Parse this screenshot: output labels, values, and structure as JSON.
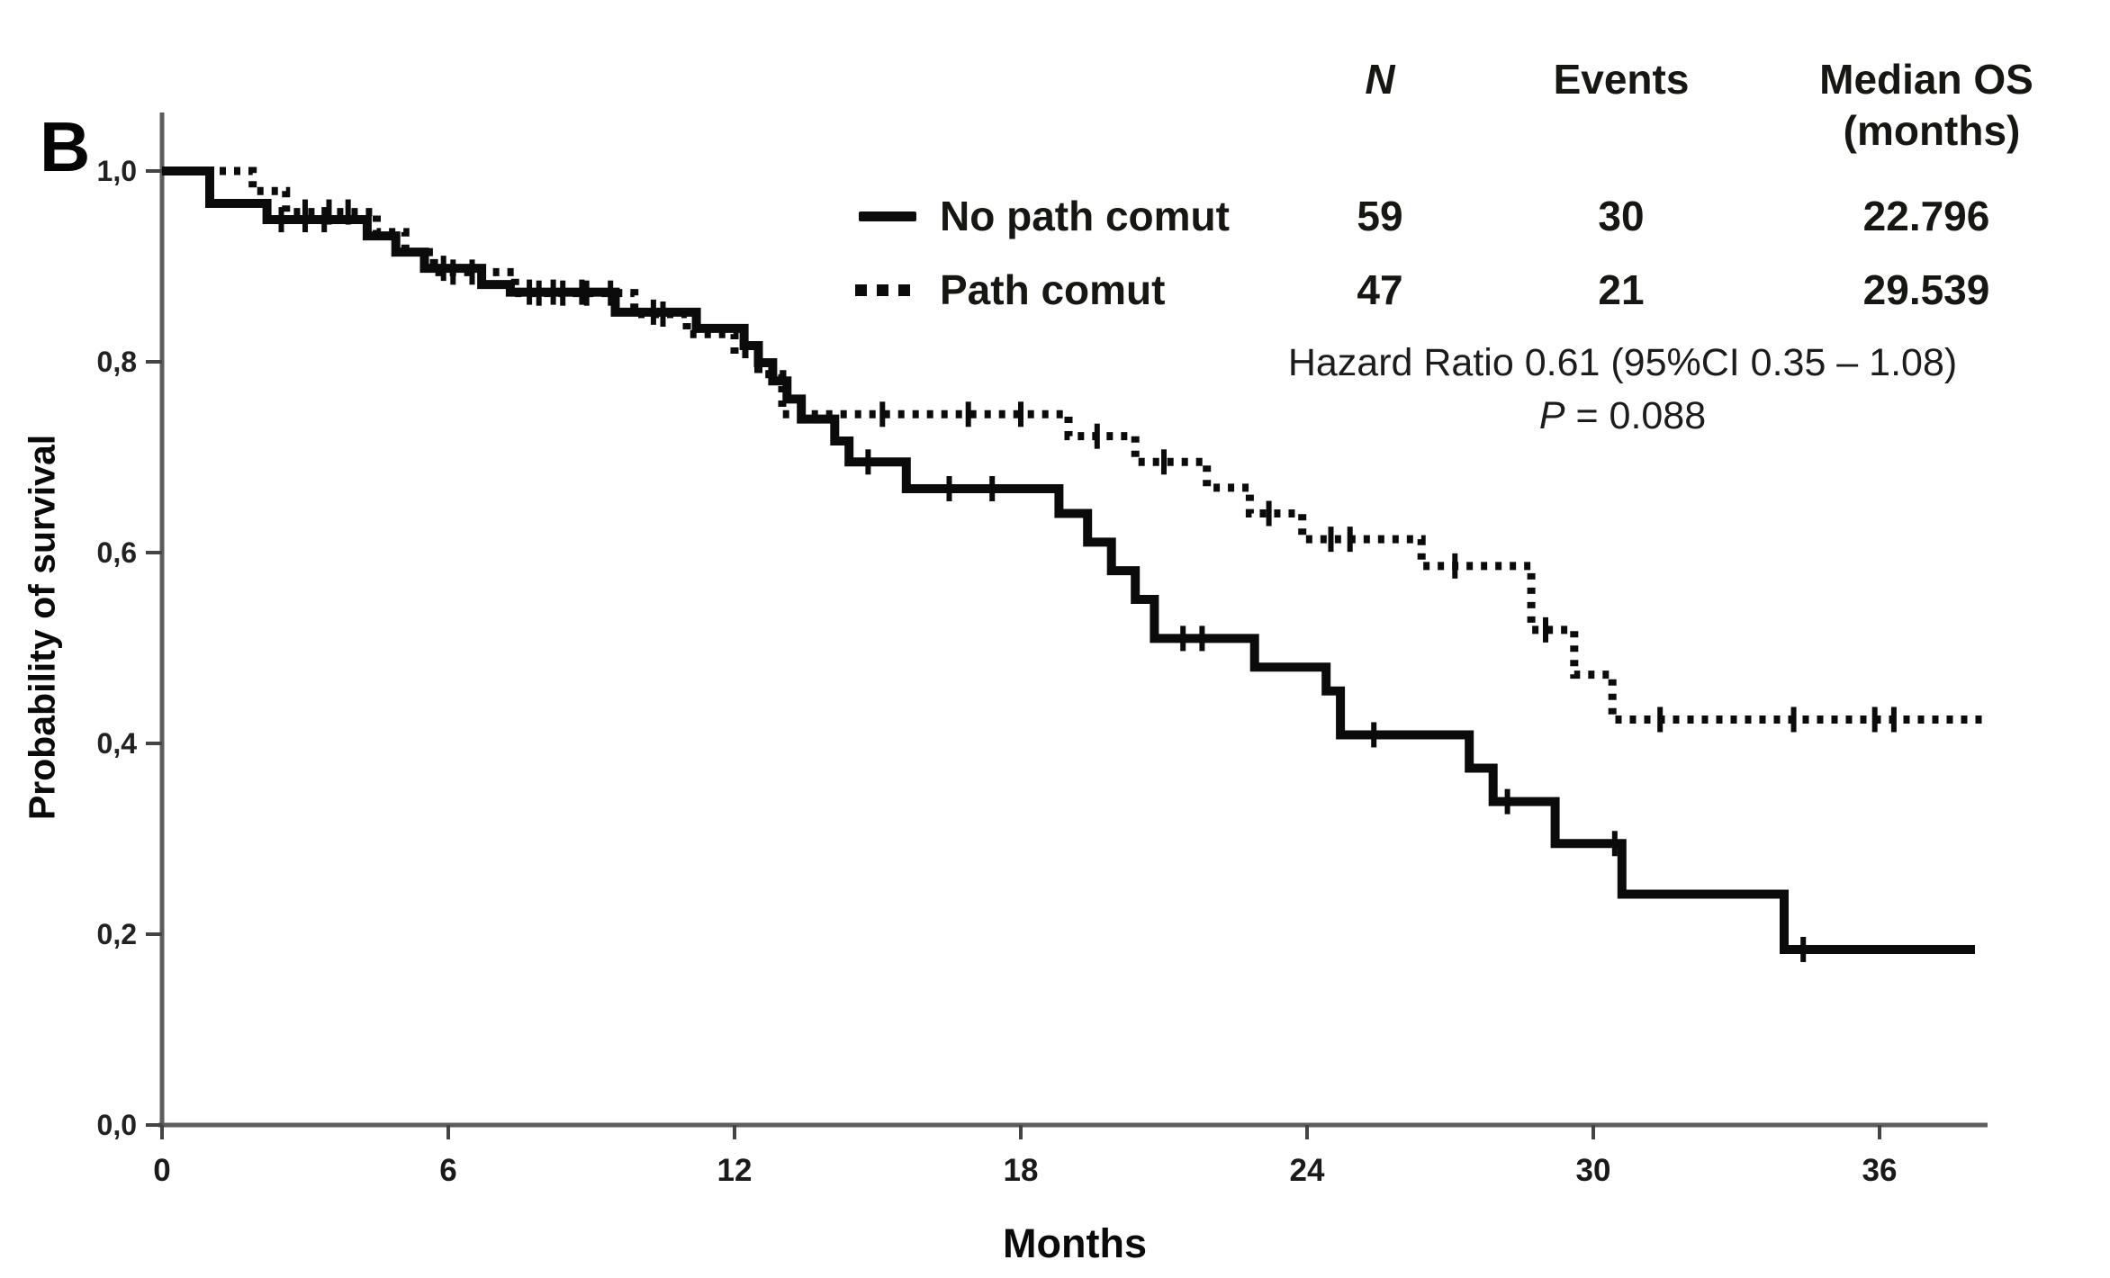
{
  "figure": {
    "panel_label": "B",
    "background": "#ffffff",
    "curve_color": "#0b0b0b",
    "axis_color": "#5d5d5d"
  },
  "legend_table": {
    "headers": {
      "n": "N",
      "events": "Events",
      "median_line1": "Median OS",
      "median_line2": "(months)"
    },
    "rows": [
      {
        "label": "No path comut",
        "swatch": "solid-line",
        "n": "59",
        "events": "30",
        "median": "22.796"
      },
      {
        "label": "Path comut",
        "swatch": "dotted-line",
        "n": "47",
        "events": "21",
        "median": "29.539"
      }
    ]
  },
  "stats": {
    "hazard_line": "Hazard Ratio 0.61 (95%CI 0.35 – 1.08)",
    "p_symbol": "P",
    "p_rest": " = 0.088"
  },
  "chart_data": {
    "type": "line",
    "subtype": "kaplan-meier-step",
    "title": "",
    "xlabel": "Months",
    "ylabel": "Probability of survival",
    "xlim": [
      0,
      38.5
    ],
    "ylim": [
      0,
      1.0
    ],
    "grid": false,
    "legend_position": "top-right-table",
    "xticks": [
      {
        "v": 0,
        "label": "0"
      },
      {
        "v": 6,
        "label": "6"
      },
      {
        "v": 12,
        "label": "12"
      },
      {
        "v": 18,
        "label": "18"
      },
      {
        "v": 24,
        "label": "24"
      },
      {
        "v": 30,
        "label": "30"
      },
      {
        "v": 36,
        "label": "36"
      }
    ],
    "yticks": [
      {
        "v": 0.0,
        "label": "0,0"
      },
      {
        "v": 0.2,
        "label": "0,2"
      },
      {
        "v": 0.4,
        "label": "0,4"
      },
      {
        "v": 0.6,
        "label": "0,6"
      },
      {
        "v": 0.8,
        "label": "0,8"
      },
      {
        "v": 1.0,
        "label": "1,0"
      }
    ],
    "series": [
      {
        "name": "No path comut",
        "style": "solid",
        "color": "#0b0b0b",
        "n": 59,
        "events": 30,
        "median_os_months": 22.796,
        "end_time": 38.0,
        "steps": [
          [
            0,
            1.0
          ],
          [
            1.0,
            0.966
          ],
          [
            2.2,
            0.949
          ],
          [
            4.3,
            0.932
          ],
          [
            4.9,
            0.915
          ],
          [
            5.5,
            0.898
          ],
          [
            6.7,
            0.881
          ],
          [
            7.3,
            0.873
          ],
          [
            9.5,
            0.852
          ],
          [
            11.2,
            0.835
          ],
          [
            12.2,
            0.817
          ],
          [
            12.5,
            0.799
          ],
          [
            12.8,
            0.78
          ],
          [
            13.1,
            0.761
          ],
          [
            13.4,
            0.74
          ],
          [
            14.1,
            0.717
          ],
          [
            14.4,
            0.695
          ],
          [
            15.6,
            0.667
          ],
          [
            18.8,
            0.641
          ],
          [
            19.4,
            0.611
          ],
          [
            19.9,
            0.581
          ],
          [
            20.4,
            0.551
          ],
          [
            20.8,
            0.51
          ],
          [
            22.9,
            0.48
          ],
          [
            24.4,
            0.455
          ],
          [
            24.7,
            0.409
          ],
          [
            27.4,
            0.374
          ],
          [
            27.9,
            0.339
          ],
          [
            29.2,
            0.295
          ],
          [
            30.6,
            0.242
          ],
          [
            34.0,
            0.184
          ]
        ],
        "censors": [
          [
            2.5,
            0.949
          ],
          [
            3.0,
            0.949
          ],
          [
            3.4,
            0.949
          ],
          [
            5.9,
            0.898
          ],
          [
            7.7,
            0.873
          ],
          [
            8.2,
            0.873
          ],
          [
            8.8,
            0.873
          ],
          [
            10.3,
            0.852
          ],
          [
            14.8,
            0.695
          ],
          [
            16.5,
            0.667
          ],
          [
            17.4,
            0.667
          ],
          [
            21.4,
            0.51
          ],
          [
            21.8,
            0.51
          ],
          [
            25.4,
            0.409
          ],
          [
            28.2,
            0.339
          ],
          [
            30.45,
            0.295
          ],
          [
            34.4,
            0.184
          ]
        ]
      },
      {
        "name": "Path comut",
        "style": "dotted",
        "color": "#0b0b0b",
        "n": 47,
        "events": 21,
        "median_os_months": 29.539,
        "end_time": 38.3,
        "steps": [
          [
            0,
            1.0
          ],
          [
            1.9,
            0.979
          ],
          [
            2.6,
            0.957
          ],
          [
            4.5,
            0.936
          ],
          [
            5.1,
            0.915
          ],
          [
            5.7,
            0.894
          ],
          [
            7.4,
            0.872
          ],
          [
            9.9,
            0.85
          ],
          [
            11.0,
            0.829
          ],
          [
            12.0,
            0.808
          ],
          [
            12.5,
            0.787
          ],
          [
            13.0,
            0.745
          ],
          [
            19.0,
            0.722
          ],
          [
            20.4,
            0.695
          ],
          [
            21.9,
            0.668
          ],
          [
            22.8,
            0.641
          ],
          [
            23.9,
            0.614
          ],
          [
            26.4,
            0.586
          ],
          [
            28.7,
            0.519
          ],
          [
            29.6,
            0.472
          ],
          [
            30.4,
            0.425
          ]
        ],
        "censors": [
          [
            3.0,
            0.957
          ],
          [
            3.5,
            0.957
          ],
          [
            3.9,
            0.957
          ],
          [
            6.1,
            0.894
          ],
          [
            6.5,
            0.894
          ],
          [
            7.9,
            0.872
          ],
          [
            8.4,
            0.872
          ],
          [
            8.9,
            0.872
          ],
          [
            9.4,
            0.872
          ],
          [
            10.5,
            0.85
          ],
          [
            15.1,
            0.745
          ],
          [
            16.9,
            0.745
          ],
          [
            18.0,
            0.745
          ],
          [
            19.6,
            0.722
          ],
          [
            21.0,
            0.695
          ],
          [
            23.2,
            0.641
          ],
          [
            24.5,
            0.614
          ],
          [
            24.9,
            0.614
          ],
          [
            27.1,
            0.586
          ],
          [
            29.0,
            0.519
          ],
          [
            31.4,
            0.425
          ],
          [
            34.2,
            0.425
          ],
          [
            35.9,
            0.425
          ],
          [
            36.3,
            0.425
          ]
        ]
      }
    ]
  }
}
